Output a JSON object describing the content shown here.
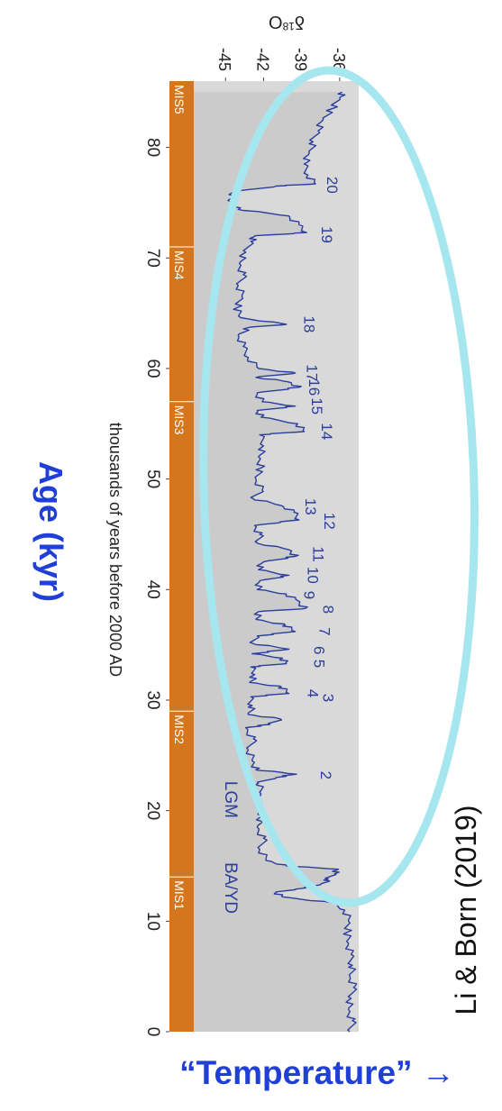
{
  "chart_data": {
    "type": "line",
    "ylabel": "δ18O",
    "ylabel_sup": "18",
    "ylabel_delta": "δ",
    "ylabel_tail": "O",
    "xlabel": "thousands of years before 2000 AD",
    "xlim": [
      0,
      86
    ],
    "ylim": [
      -47.5,
      -34.5
    ],
    "x_ticks": [
      0,
      10,
      20,
      30,
      40,
      50,
      60,
      70,
      80
    ],
    "y_ticks": [
      -45,
      -42,
      -39,
      -36
    ],
    "series": [
      {
        "color": "#2c3e9c",
        "points": [
          [
            0.0,
            -35.2
          ],
          [
            1.0,
            -35.0
          ],
          [
            2.0,
            -35.3
          ],
          [
            3.0,
            -35.1
          ],
          [
            4.0,
            -34.9
          ],
          [
            5.0,
            -35.2
          ],
          [
            6.0,
            -35.0
          ],
          [
            7.0,
            -35.1
          ],
          [
            8.0,
            -35.3
          ],
          [
            9.0,
            -35.4
          ],
          [
            10.0,
            -35.3
          ],
          [
            11.0,
            -35.6
          ],
          [
            11.7,
            -36.8
          ],
          [
            12.2,
            -40.5
          ],
          [
            12.6,
            -41.0
          ],
          [
            12.9,
            -39.5
          ],
          [
            13.3,
            -37.5
          ],
          [
            13.8,
            -36.9
          ],
          [
            14.3,
            -36.4
          ],
          [
            14.7,
            -36.1
          ],
          [
            15.0,
            -40.2
          ],
          [
            15.5,
            -41.8
          ],
          [
            16.5,
            -42.3
          ],
          [
            17.5,
            -42.0
          ],
          [
            18.5,
            -42.5
          ],
          [
            19.5,
            -42.1
          ],
          [
            20.5,
            -42.6
          ],
          [
            21.5,
            -42.2
          ],
          [
            22.5,
            -42.4
          ],
          [
            23.0,
            -41.0
          ],
          [
            23.3,
            -39.4
          ],
          [
            23.7,
            -42.6
          ],
          [
            24.5,
            -42.9
          ],
          [
            25.5,
            -43.2
          ],
          [
            26.5,
            -42.8
          ],
          [
            27.5,
            -43.4
          ],
          [
            27.8,
            -41.5
          ],
          [
            28.3,
            -40.7
          ],
          [
            28.7,
            -43.2
          ],
          [
            29.5,
            -42.9
          ],
          [
            30.3,
            -43.0
          ],
          [
            30.6,
            -40.0
          ],
          [
            31.2,
            -40.6
          ],
          [
            31.6,
            -43.1
          ],
          [
            32.3,
            -42.7
          ],
          [
            33.0,
            -43.0
          ],
          [
            33.3,
            -40.2
          ],
          [
            33.8,
            -40.5
          ],
          [
            34.2,
            -42.9
          ],
          [
            34.6,
            -40.0
          ],
          [
            35.1,
            -42.8
          ],
          [
            35.8,
            -42.5
          ],
          [
            36.2,
            -39.5
          ],
          [
            36.8,
            -40.3
          ],
          [
            37.3,
            -42.6
          ],
          [
            38.0,
            -42.4
          ],
          [
            38.3,
            -38.7
          ],
          [
            39.0,
            -39.3
          ],
          [
            39.6,
            -40.2
          ],
          [
            40.0,
            -42.5
          ],
          [
            40.8,
            -42.3
          ],
          [
            41.3,
            -40.0
          ],
          [
            41.8,
            -42.4
          ],
          [
            42.5,
            -42.0
          ],
          [
            43.0,
            -39.5
          ],
          [
            43.6,
            -40.0
          ],
          [
            44.2,
            -42.5
          ],
          [
            45.0,
            -42.3
          ],
          [
            45.8,
            -42.7
          ],
          [
            46.3,
            -39.2
          ],
          [
            47.0,
            -39.6
          ],
          [
            47.6,
            -40.6
          ],
          [
            48.2,
            -42.8
          ],
          [
            49.0,
            -42.1
          ],
          [
            50.0,
            -42.6
          ],
          [
            51.0,
            -42.2
          ],
          [
            52.0,
            -42.4
          ],
          [
            53.0,
            -42.0
          ],
          [
            54.0,
            -42.3
          ],
          [
            54.3,
            -38.8
          ],
          [
            55.0,
            -39.3
          ],
          [
            55.6,
            -42.2
          ],
          [
            56.2,
            -42.5
          ],
          [
            56.6,
            -39.5
          ],
          [
            57.0,
            -42.1
          ],
          [
            57.8,
            -42.5
          ],
          [
            58.3,
            -39.2
          ],
          [
            58.8,
            -40.1
          ],
          [
            59.2,
            -42.6
          ],
          [
            59.6,
            -39.5
          ],
          [
            60.0,
            -42.4
          ],
          [
            61.0,
            -43.2
          ],
          [
            62.0,
            -43.6
          ],
          [
            63.0,
            -44.0
          ],
          [
            63.7,
            -43.2
          ],
          [
            64.0,
            -40.2
          ],
          [
            64.6,
            -43.8
          ],
          [
            65.5,
            -44.1
          ],
          [
            66.5,
            -43.7
          ],
          [
            67.5,
            -44.0
          ],
          [
            68.5,
            -43.6
          ],
          [
            69.5,
            -43.9
          ],
          [
            70.5,
            -43.4
          ],
          [
            71.5,
            -43.0
          ],
          [
            72.0,
            -42.7
          ],
          [
            72.3,
            -38.6
          ],
          [
            73.0,
            -39.2
          ],
          [
            73.8,
            -40.0
          ],
          [
            74.4,
            -44.0
          ],
          [
            75.2,
            -44.8
          ],
          [
            76.0,
            -44.3
          ],
          [
            76.5,
            -41.0
          ],
          [
            76.7,
            -37.9
          ],
          [
            77.5,
            -38.5
          ],
          [
            78.5,
            -38.8
          ],
          [
            79.5,
            -38.4
          ],
          [
            80.5,
            -38.1
          ],
          [
            81.5,
            -37.7
          ],
          [
            82.5,
            -37.3
          ],
          [
            83.5,
            -36.6
          ],
          [
            84.5,
            -36.0
          ],
          [
            85.0,
            -35.8
          ]
        ]
      }
    ],
    "event_labels": [
      {
        "label": "20",
        "x": 76.6,
        "y": -37.0
      },
      {
        "label": "19",
        "x": 72.1,
        "y": -37.4
      },
      {
        "label": "18",
        "x": 64.0,
        "y": -38.8
      },
      {
        "label": "17",
        "x": 59.6,
        "y": -38.6
      },
      {
        "label": "16",
        "x": 58.3,
        "y": -38.4
      },
      {
        "label": "15",
        "x": 56.6,
        "y": -38.2
      },
      {
        "label": "14",
        "x": 54.3,
        "y": -37.4
      },
      {
        "label": "13",
        "x": 47.5,
        "y": -38.7
      },
      {
        "label": "12",
        "x": 46.2,
        "y": -37.2
      },
      {
        "label": "11",
        "x": 43.2,
        "y": -38.1
      },
      {
        "label": "10",
        "x": 41.3,
        "y": -38.5
      },
      {
        "label": "9",
        "x": 39.5,
        "y": -38.8
      },
      {
        "label": "8",
        "x": 38.2,
        "y": -37.3
      },
      {
        "label": "7",
        "x": 36.2,
        "y": -37.6
      },
      {
        "label": "6",
        "x": 34.5,
        "y": -38.0
      },
      {
        "label": "5",
        "x": 33.3,
        "y": -38.0
      },
      {
        "label": "4",
        "x": 30.6,
        "y": -38.5
      },
      {
        "label": "3",
        "x": 30.2,
        "y": -37.3
      },
      {
        "label": "2",
        "x": 23.2,
        "y": -37.5
      },
      {
        "label": "LGM",
        "x": 21.0,
        "y": -45.0
      },
      {
        "label": "BA/YD",
        "x": 13.0,
        "y": -45.0
      }
    ],
    "stages": [
      {
        "label": "MIS1",
        "start": 0,
        "end": 14
      },
      {
        "label": "MIS2",
        "start": 14,
        "end": 29
      },
      {
        "label": "MIS3",
        "start": 29,
        "end": 57
      },
      {
        "label": "MIS4",
        "start": 57,
        "end": 71
      },
      {
        "label": "MIS5",
        "start": 71,
        "end": 86
      }
    ],
    "grid": false
  },
  "annotations": {
    "age_label": "Age (kyr)",
    "citation": "Li & Born (2019)",
    "temperature_label": "“Temperature” →"
  },
  "colors": {
    "series": "#2c3e9c",
    "fill": "#d9d9d9",
    "stage_band": "#d4761e",
    "ellipse": "#a6e6ee",
    "accent_text": "#1f3fd6"
  }
}
